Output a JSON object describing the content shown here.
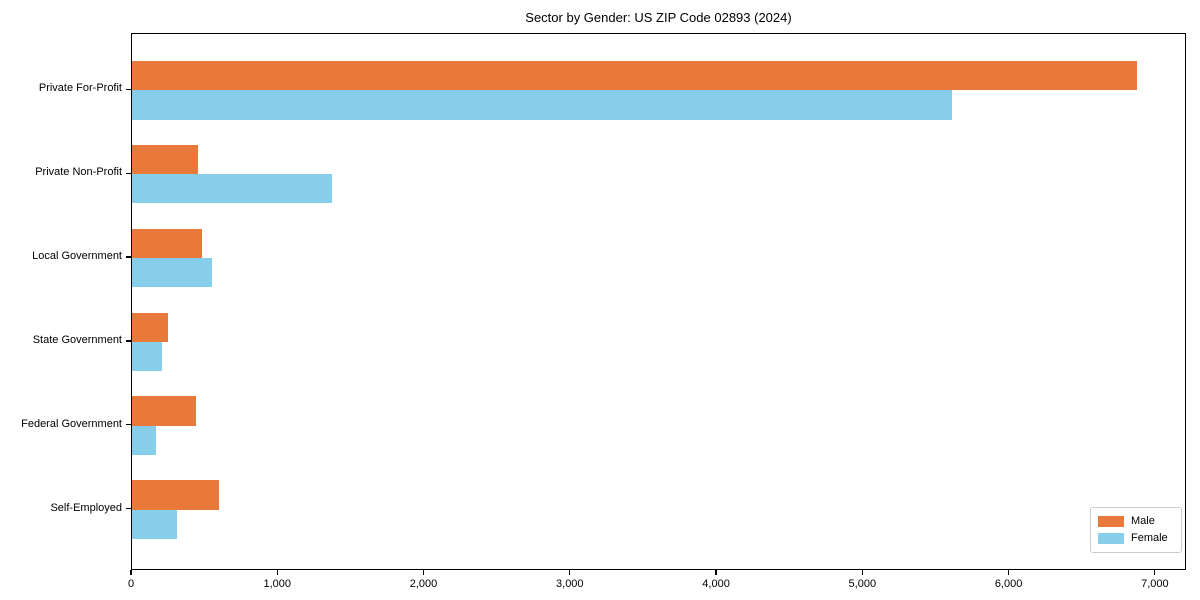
{
  "chart_data": {
    "type": "bar",
    "orientation": "horizontal",
    "title": "Sector by Gender: US ZIP Code 02893 (2024)",
    "categories": [
      "Private For-Profit",
      "Private Non-Profit",
      "Local Government",
      "State Government",
      "Federal Government",
      "Self-Employed"
    ],
    "series": [
      {
        "name": "Male",
        "color": "#e8793a",
        "values": [
          6870,
          450,
          480,
          245,
          435,
          595
        ]
      },
      {
        "name": "Female",
        "color": "#87ceeb",
        "values": [
          5605,
          1370,
          545,
          205,
          165,
          310
        ]
      }
    ],
    "xlim": [
      0,
      7213
    ],
    "xticks": [
      0,
      1000,
      2000,
      3000,
      4000,
      5000,
      6000,
      7000
    ],
    "xtick_labels": [
      "0",
      "1,000",
      "2,000",
      "3,000",
      "4,000",
      "5,000",
      "6,000",
      "7,000"
    ],
    "xlabel": "",
    "ylabel": "",
    "grid": false,
    "legend_position": "lower right"
  }
}
